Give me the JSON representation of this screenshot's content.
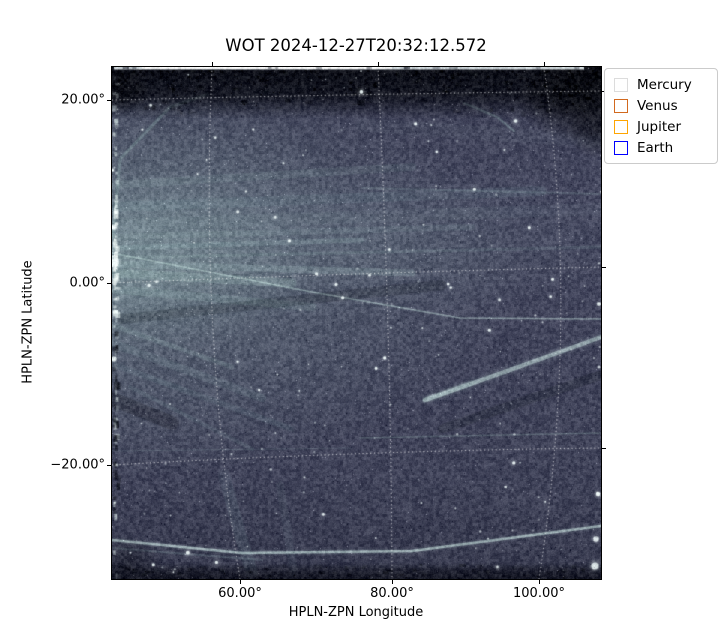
{
  "figure": {
    "title": "WOT 2024-12-27T20:32:12.572"
  },
  "axes": {
    "xlabel": "HPLN-ZPN Longitude",
    "ylabel": "HPLN-ZPN Latitude",
    "x_tick_labels": [
      "60.00°",
      "80.00°",
      "100.00°"
    ],
    "y_tick_labels": [
      "20.00°",
      "0.00°",
      "−20.00°"
    ]
  },
  "legend": {
    "entries": [
      {
        "label": "Mercury",
        "color": "#dcdcdc"
      },
      {
        "label": "Venus",
        "color": "#d2691e"
      },
      {
        "label": "Jupiter",
        "color": "#ffa500"
      },
      {
        "label": "Earth",
        "color": "#0000ff"
      }
    ]
  },
  "chart_data": {
    "type": "heatmap",
    "title": "WOT 2024-12-27T20:32:12.572",
    "xlabel": "HPLN-ZPN Longitude",
    "ylabel": "HPLN-ZPN Latitude",
    "x_tick_labels": [
      "60.00°",
      "80.00°",
      "100.00°"
    ],
    "y_tick_labels": [
      "20.00°",
      "0.00°",
      "−20.00°"
    ],
    "x_ticks_deg": [
      60,
      80,
      100
    ],
    "y_ticks_deg": [
      20,
      0,
      -20
    ],
    "xlim_deg_approx": [
      43,
      108
    ],
    "ylim_deg_approx": [
      -32.5,
      23.5
    ],
    "grid": {
      "style": "dotted",
      "color": "#ffffff",
      "curved_wcs_graticule": true
    },
    "legend_position": "upper right, outside axes",
    "legend_entries": [
      {
        "label": "Mercury",
        "edge_color": "#dcdcdc"
      },
      {
        "label": "Venus",
        "edge_color": "#d2691e"
      },
      {
        "label": "Jupiter",
        "edge_color": "#ffa500"
      },
      {
        "label": "Earth",
        "edge_color": "#0000ff"
      }
    ],
    "image_colors": {
      "background": "#454860",
      "streamers": "#a8cac6",
      "stars": "#f0fafa",
      "edge_bands": "#0b0d16",
      "top_edge_strip": "#e1eaed"
    },
    "image_description": "Wide-field white-light imager frame: grainy dark slate-blue starfield; pale teal coronal streamers fan rightward from a bright knot on the left edge near 0° latitude; a thin diagonal satellite streak crosses the center; a bright diagonal streak sits in the lower right; a thin bright arc runs along the bottom; dark mottled bands line the top and bottom edges; white stars scattered throughout"
  }
}
